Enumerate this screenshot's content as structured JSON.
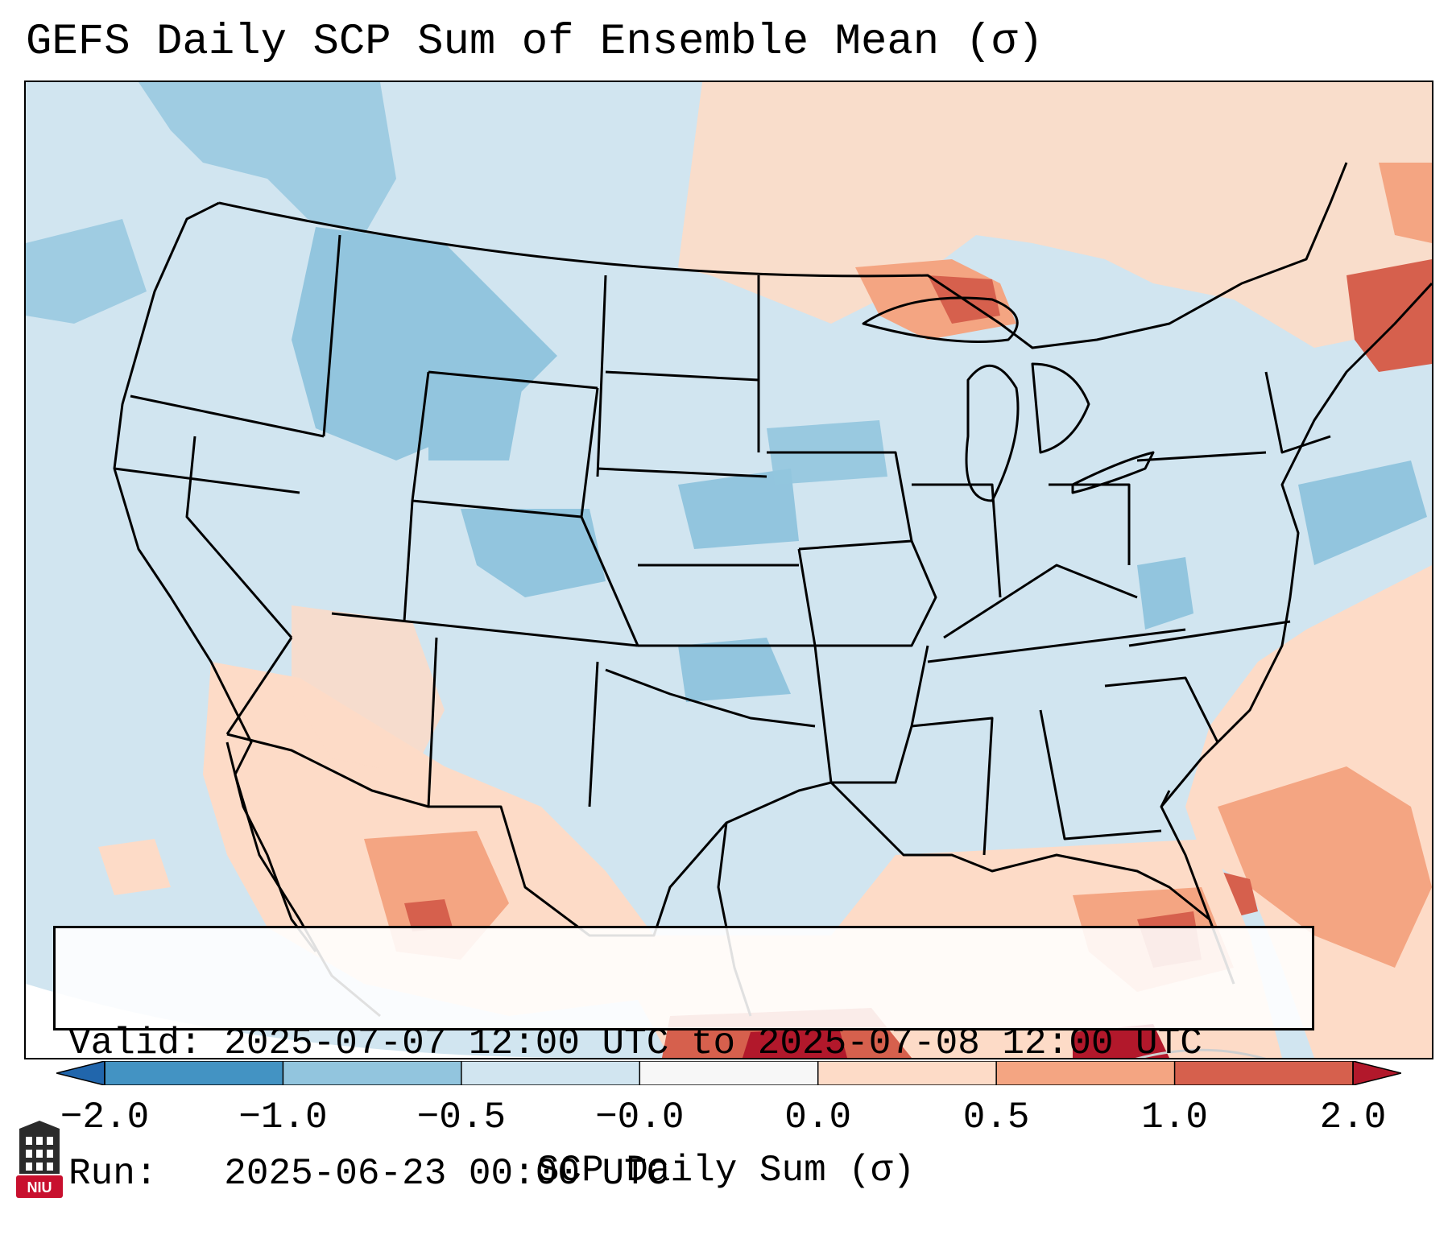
{
  "title": "GEFS Daily SCP Sum of Ensemble Mean (σ)",
  "info": {
    "valid_label": "Valid:",
    "valid_value": "2025-07-07 12:00 UTC to 2025-07-08 12:00 UTC",
    "run_label": "Run:",
    "run_value": "2025-06-23 00:00 UTC"
  },
  "colorbar": {
    "label": "SCP Daily Sum (σ)",
    "ticks": [
      "−2.0",
      "−1.0",
      "−0.5",
      "−0.0",
      "0.0",
      "0.5",
      "1.0",
      "2.0"
    ],
    "colors": [
      "#4393c3",
      "#92c5de",
      "#d1e5f0",
      "#f7f7f7",
      "#fddbc7",
      "#f4a582",
      "#d6604d"
    ],
    "extend_min_color": "#2166ac",
    "extend_max_color": "#b2182b"
  },
  "logo": {
    "text": "NIU",
    "color": "#c8102e"
  },
  "map_colors": {
    "ocean_bg": "#d1e5f0",
    "outside": "#ffffff",
    "pos_light": "#fddbc7",
    "pos_mid": "#f4a582",
    "pos_strong": "#d6604d",
    "pos_max": "#b2182b",
    "neg_mid": "#92c5de",
    "neutral": "#f7f7f7"
  }
}
